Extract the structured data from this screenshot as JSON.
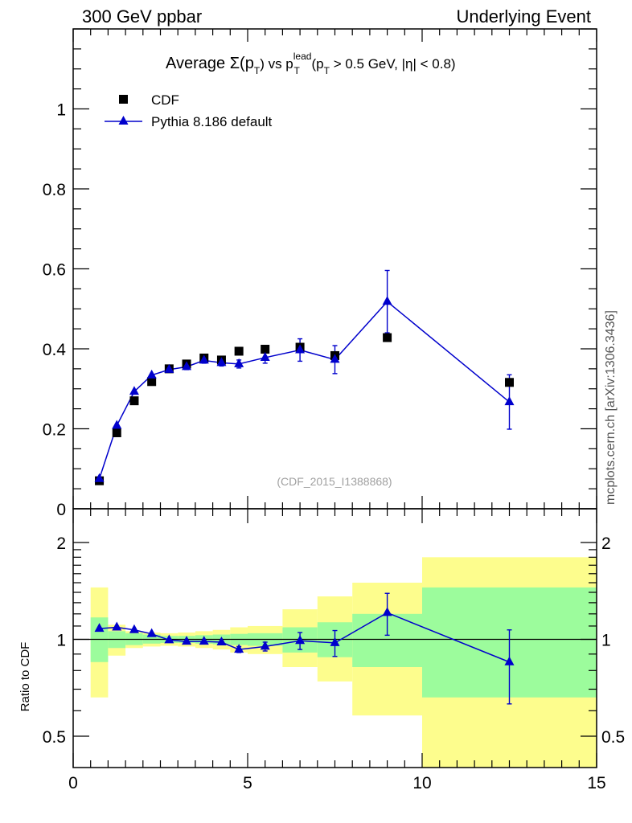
{
  "header": {
    "left": "300 GeV ppbar",
    "right": "Underlying Event"
  },
  "side_label": "mcplots.cern.ch [arXiv:1306.3436]",
  "title": {
    "t1": "Average ",
    "t2": "Σ(p",
    "t3": "T",
    "t4": ") vs p",
    "t5": "lead",
    "t6": "T",
    "t7": " (p",
    "t8": "T",
    "t9": " > 0.5 GeV, |η| < 0.8)"
  },
  "legend": {
    "cdf": "CDF",
    "pythia": "Pythia 8.186 default"
  },
  "ref_label": "(CDF_2015_I1388868)",
  "ratio_ylabel": "Ratio to CDF",
  "colors": {
    "mc": "#0000cc",
    "band_inner": "#9cfc9c",
    "band_outer": "#fdfd8d",
    "data": "#000000"
  },
  "chart_data": [
    {
      "type": "scatter",
      "panel": "main",
      "xlim": [
        0,
        15
      ],
      "ylim": [
        0,
        1.2
      ],
      "yticks": [
        0,
        0.2,
        0.4,
        0.6,
        0.8,
        1
      ],
      "ytick_labels": [
        "0",
        "0.2",
        "0.4",
        "0.6",
        "0.8",
        "1"
      ],
      "series": [
        {
          "name": "CDF",
          "marker": "square",
          "x": [
            0.75,
            1.25,
            1.75,
            2.25,
            2.75,
            3.25,
            3.75,
            4.25,
            4.75,
            5.5,
            6.5,
            7.5,
            9.0,
            12.5
          ],
          "y": [
            0.07,
            0.19,
            0.27,
            0.318,
            0.35,
            0.362,
            0.377,
            0.372,
            0.394,
            0.399,
            0.404,
            0.383,
            0.428,
            0.316
          ]
        },
        {
          "name": "Pythia 8.186 default",
          "marker": "triangle",
          "x": [
            0.75,
            1.25,
            1.75,
            2.25,
            2.75,
            3.25,
            3.75,
            4.25,
            4.75,
            5.5,
            6.5,
            7.5,
            9.0,
            12.5
          ],
          "y": [
            0.075,
            0.208,
            0.293,
            0.334,
            0.348,
            0.355,
            0.371,
            0.365,
            0.362,
            0.378,
            0.397,
            0.373,
            0.518,
            0.267
          ],
          "yerr": [
            0.004,
            0.006,
            0.006,
            0.006,
            0.007,
            0.007,
            0.007,
            0.008,
            0.01,
            0.014,
            0.028,
            0.035,
            0.078,
            0.068
          ]
        }
      ]
    },
    {
      "type": "line",
      "panel": "ratio",
      "xlim": [
        0,
        15
      ],
      "ylim": [
        0.4,
        2.3
      ],
      "log_y": true,
      "xticks": [
        0,
        5,
        10,
        15
      ],
      "xtick_labels": [
        "0",
        "5",
        "10",
        "15"
      ],
      "yticks": [
        0.5,
        1,
        2
      ],
      "ytick_labels": [
        "0.5",
        "1",
        "2"
      ],
      "bands": {
        "edges": [
          0.5,
          1.0,
          1.5,
          2.0,
          2.5,
          3.0,
          3.5,
          4.0,
          4.5,
          5.0,
          6.0,
          7.0,
          8.0,
          10.0,
          15.0
        ],
        "inner_lo": [
          0.85,
          0.94,
          0.96,
          0.97,
          0.975,
          0.975,
          0.97,
          0.965,
          0.96,
          0.955,
          0.91,
          0.88,
          0.82,
          0.66
        ],
        "inner_hi": [
          1.17,
          1.06,
          1.045,
          1.035,
          1.025,
          1.025,
          1.03,
          1.035,
          1.04,
          1.045,
          1.09,
          1.13,
          1.2,
          1.45
        ],
        "outer_lo": [
          0.66,
          0.89,
          0.94,
          0.95,
          0.955,
          0.95,
          0.94,
          0.93,
          0.91,
          0.9,
          0.82,
          0.74,
          0.58,
          0.33
        ],
        "outer_hi": [
          1.45,
          1.11,
          1.06,
          1.05,
          1.045,
          1.05,
          1.06,
          1.07,
          1.09,
          1.1,
          1.24,
          1.36,
          1.5,
          1.8
        ]
      },
      "series": [
        {
          "name": "Pythia 8.186 default",
          "x": [
            0.75,
            1.25,
            1.75,
            2.25,
            2.75,
            3.25,
            3.75,
            4.25,
            4.75,
            5.5,
            6.5,
            7.5,
            9.0,
            12.5
          ],
          "y": [
            1.08,
            1.09,
            1.07,
            1.04,
            0.995,
            0.985,
            0.985,
            0.98,
            0.93,
            0.95,
            0.99,
            0.975,
            1.21,
            0.85
          ],
          "yerr": [
            0.01,
            0.01,
            0.01,
            0.01,
            0.01,
            0.01,
            0.01,
            0.01,
            0.02,
            0.03,
            0.06,
            0.09,
            0.18,
            0.22
          ]
        }
      ]
    }
  ]
}
